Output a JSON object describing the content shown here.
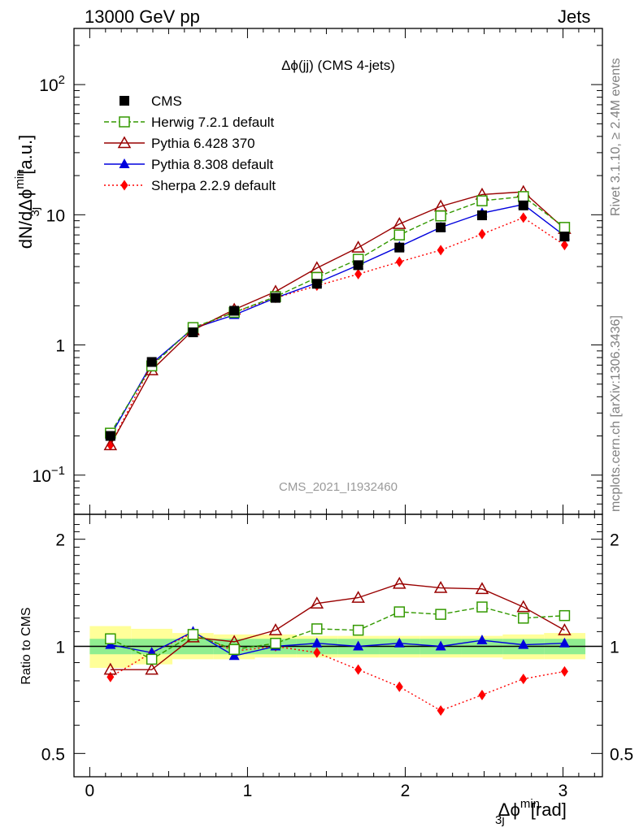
{
  "header": {
    "left": "13000 GeV pp",
    "right": "Jets"
  },
  "side_labels": {
    "rivet": "Rivet 3.1.10, ≥ 2.4M events",
    "mcplots": "mcplots.cern.ch [arXiv:1306.3436]"
  },
  "chart_data": [
    {
      "type": "line",
      "title": "Δϕ(jj) (CMS 4-jets)",
      "watermark": "CMS_2021_I1932460",
      "ylabel": "dN/dΔϕ^{rm min}_{rm 3j} [a.u.]",
      "yscale": "log",
      "ylim": [
        0.05,
        270
      ],
      "xlim": [
        -0.1,
        3.25
      ],
      "y_ticks": [
        {
          "value": 0.1,
          "base": "10",
          "exp": "−1"
        },
        {
          "value": 1,
          "label": "1"
        },
        {
          "value": 10,
          "label": "10"
        },
        {
          "value": 100,
          "base": "10",
          "exp": "2"
        }
      ],
      "legend_position": "top-left",
      "x": [
        0.131,
        0.393,
        0.655,
        0.916,
        1.178,
        1.44,
        1.702,
        1.963,
        2.225,
        2.487,
        2.749,
        3.01
      ],
      "series": [
        {
          "name": "CMS",
          "color": "#000000",
          "marker": "square",
          "line": "none",
          "values": [
            0.2,
            0.74,
            1.25,
            1.83,
            2.3,
            2.95,
            4.1,
            5.6,
            8.0,
            9.9,
            11.8,
            6.8
          ]
        },
        {
          "name": "Herwig 7.2.1 default",
          "color": "#339900",
          "marker": "open-square",
          "line": "dashed",
          "values": [
            0.21,
            0.69,
            1.36,
            1.78,
            2.35,
            3.3,
            4.55,
            7.0,
            9.8,
            12.8,
            13.8,
            8.0
          ]
        },
        {
          "name": "Pythia 6.428 370",
          "color": "#990000",
          "marker": "open-triangle",
          "line": "solid",
          "values": [
            0.17,
            0.64,
            1.3,
            1.87,
            2.57,
            3.9,
            5.6,
            8.5,
            11.6,
            14.3,
            15.0,
            7.8
          ]
        },
        {
          "name": "Pythia 8.308 default",
          "color": "#0000dd",
          "marker": "triangle",
          "line": "solid",
          "values": [
            0.2,
            0.72,
            1.34,
            1.7,
            2.3,
            3.0,
            4.1,
            5.7,
            8.0,
            10.3,
            12.0,
            6.9
          ]
        },
        {
          "name": "Sherpa 2.2.9 default",
          "color": "#ff0000",
          "marker": "diamond",
          "line": "dotted",
          "values": [
            0.17,
            0.71,
            1.34,
            1.78,
            2.3,
            2.85,
            3.5,
            4.35,
            5.35,
            7.1,
            9.5,
            5.85
          ]
        }
      ]
    },
    {
      "type": "line",
      "ylabel": "Ratio to CMS",
      "xlabel": "Δϕ^{rm min}_{rm 3j} [rad]",
      "yscale": "log",
      "ylim": [
        0.43,
        2.35
      ],
      "xlim": [
        -0.1,
        3.25
      ],
      "y_ticks": [
        {
          "value": 0.5,
          "label": "0.5"
        },
        {
          "value": 1,
          "label": "1"
        },
        {
          "value": 2,
          "label": "2"
        }
      ],
      "x_ticks": [
        {
          "value": 0,
          "label": "0"
        },
        {
          "value": 1,
          "label": "1"
        },
        {
          "value": 2,
          "label": "2"
        },
        {
          "value": 3,
          "label": "3"
        }
      ],
      "bin_edges": [
        0.0,
        0.262,
        0.524,
        0.785,
        1.047,
        1.309,
        1.571,
        1.833,
        2.094,
        2.356,
        2.618,
        2.88,
        3.142
      ],
      "band_inner": {
        "color": "#90ee90",
        "lo": [
          0.95,
          0.95,
          0.95,
          0.95,
          0.95,
          0.95,
          0.95,
          0.95,
          0.95,
          0.95,
          0.95,
          0.95
        ],
        "hi": [
          1.05,
          1.05,
          1.05,
          1.05,
          1.05,
          1.05,
          1.05,
          1.05,
          1.05,
          1.05,
          1.05,
          1.05
        ]
      },
      "band_outer": {
        "color": "#ffff99",
        "lo": [
          0.87,
          0.89,
          0.92,
          0.92,
          0.93,
          0.93,
          0.93,
          0.93,
          0.93,
          0.93,
          0.92,
          0.92
        ],
        "hi": [
          1.14,
          1.12,
          1.09,
          1.08,
          1.08,
          1.07,
          1.07,
          1.07,
          1.07,
          1.07,
          1.08,
          1.09
        ]
      },
      "x": [
        0.131,
        0.393,
        0.655,
        0.916,
        1.178,
        1.44,
        1.702,
        1.963,
        2.225,
        2.487,
        2.749,
        3.01
      ],
      "series": [
        {
          "name": "Herwig 7.2.1 default",
          "color": "#339900",
          "marker": "open-square",
          "line": "dashed",
          "values": [
            1.05,
            0.92,
            1.08,
            0.98,
            1.02,
            1.12,
            1.11,
            1.25,
            1.23,
            1.29,
            1.2,
            1.22
          ]
        },
        {
          "name": "Pythia 6.428 370",
          "color": "#990000",
          "marker": "open-triangle",
          "line": "solid",
          "values": [
            0.86,
            0.86,
            1.06,
            1.03,
            1.11,
            1.32,
            1.37,
            1.5,
            1.46,
            1.45,
            1.29,
            1.11
          ]
        },
        {
          "name": "Pythia 8.308 default",
          "color": "#0000dd",
          "marker": "triangle",
          "line": "solid",
          "values": [
            1.01,
            0.96,
            1.1,
            0.94,
            1.0,
            1.02,
            1.0,
            1.02,
            1.0,
            1.04,
            1.01,
            1.02
          ]
        },
        {
          "name": "Sherpa 2.2.9 default",
          "color": "#ff0000",
          "marker": "diamond",
          "line": "dotted",
          "values": [
            0.82,
            0.96,
            1.09,
            0.97,
            1.0,
            0.96,
            0.86,
            0.77,
            0.66,
            0.73,
            0.81,
            0.85
          ]
        }
      ]
    }
  ]
}
